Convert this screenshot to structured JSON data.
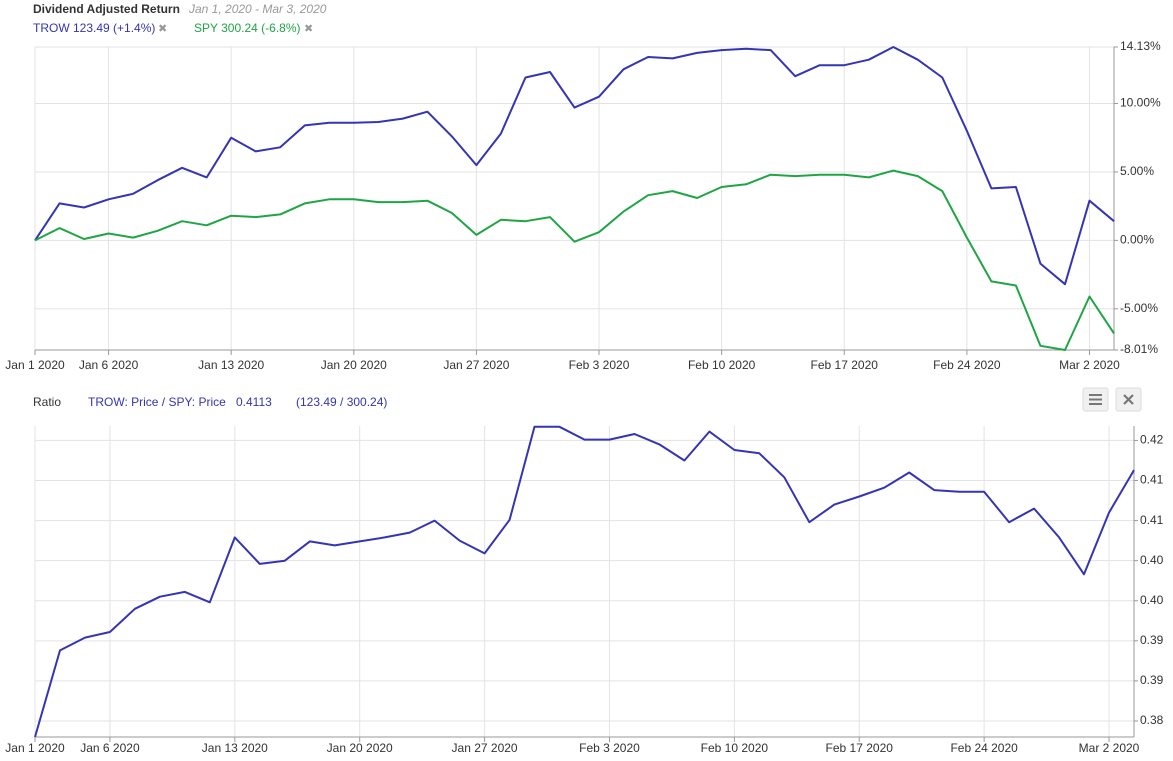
{
  "chart_data": [
    {
      "type": "line",
      "title": "Dividend Adjusted Return",
      "subtitle": "Jan 1, 2020 - Mar 3, 2020",
      "x": [
        "2020-01-01",
        "2020-01-02",
        "2020-01-03",
        "2020-01-06",
        "2020-01-07",
        "2020-01-08",
        "2020-01-09",
        "2020-01-10",
        "2020-01-13",
        "2020-01-14",
        "2020-01-15",
        "2020-01-16",
        "2020-01-17",
        "2020-01-20",
        "2020-01-21",
        "2020-01-22",
        "2020-01-23",
        "2020-01-24",
        "2020-01-27",
        "2020-01-28",
        "2020-01-29",
        "2020-01-30",
        "2020-01-31",
        "2020-02-03",
        "2020-02-04",
        "2020-02-05",
        "2020-02-06",
        "2020-02-07",
        "2020-02-10",
        "2020-02-11",
        "2020-02-12",
        "2020-02-13",
        "2020-02-14",
        "2020-02-17",
        "2020-02-18",
        "2020-02-19",
        "2020-02-20",
        "2020-02-21",
        "2020-02-24",
        "2020-02-25",
        "2020-02-26",
        "2020-02-27",
        "2020-02-28",
        "2020-03-02",
        "2020-03-03"
      ],
      "series": [
        {
          "name": "TROW 123.49 (+1.4%)",
          "color": "#3434b4",
          "values": [
            0,
            2.7,
            2.4,
            3.0,
            3.4,
            4.4,
            5.3,
            4.6,
            7.5,
            6.5,
            6.8,
            8.4,
            8.6,
            8.6,
            8.65,
            8.9,
            9.4,
            7.6,
            5.5,
            7.8,
            11.9,
            12.3,
            9.7,
            10.5,
            12.5,
            13.4,
            13.3,
            13.7,
            13.9,
            14.0,
            13.9,
            12.0,
            12.8,
            12.8,
            13.2,
            14.13,
            13.2,
            11.9,
            8.0,
            3.8,
            3.9,
            -1.7,
            -3.2,
            2.9,
            1.4
          ]
        },
        {
          "name": "SPY 300.24 (-6.8%)",
          "color": "#1fa544",
          "values": [
            0,
            0.9,
            0.1,
            0.5,
            0.2,
            0.7,
            1.4,
            1.1,
            1.8,
            1.7,
            1.9,
            2.7,
            3.0,
            3.0,
            2.8,
            2.8,
            2.9,
            2.0,
            0.4,
            1.5,
            1.4,
            1.7,
            -0.1,
            0.6,
            2.1,
            3.3,
            3.6,
            3.1,
            3.9,
            4.1,
            4.8,
            4.7,
            4.8,
            4.8,
            4.6,
            5.1,
            4.7,
            3.6,
            0.2,
            -3.0,
            -3.3,
            -7.7,
            -8.01,
            -4.1,
            -6.8
          ]
        }
      ],
      "xlim": [
        "2020-01-01",
        "2020-03-03"
      ],
      "xticks": [
        {
          "value": "2020-01-01",
          "label": "Jan 1 2020"
        },
        {
          "value": "2020-01-06",
          "label": "Jan 6 2020"
        },
        {
          "value": "2020-01-13",
          "label": "Jan 13 2020"
        },
        {
          "value": "2020-01-20",
          "label": "Jan 20 2020"
        },
        {
          "value": "2020-01-27",
          "label": "Jan 27 2020"
        },
        {
          "value": "2020-02-03",
          "label": "Feb 3 2020"
        },
        {
          "value": "2020-02-10",
          "label": "Feb 10 2020"
        },
        {
          "value": "2020-02-17",
          "label": "Feb 17 2020"
        },
        {
          "value": "2020-02-24",
          "label": "Feb 24 2020"
        },
        {
          "value": "2020-03-02",
          "label": "Mar 2 2020"
        }
      ],
      "ylim": [
        -8.01,
        14.13
      ],
      "yticks": [
        {
          "value": 14.13,
          "label": "14.13%"
        },
        {
          "value": 10,
          "label": "10.00%"
        },
        {
          "value": 5,
          "label": "5.00%"
        },
        {
          "value": 0,
          "label": "0.00%"
        },
        {
          "value": -5,
          "label": "-5.00%"
        },
        {
          "value": -8.01,
          "label": "-8.01%"
        }
      ],
      "grid": true
    },
    {
      "type": "line",
      "title": "Ratio",
      "annotations": [
        "0.4113",
        "(123.49 / 300.24)"
      ],
      "x": [
        "2020-01-01",
        "2020-01-02",
        "2020-01-03",
        "2020-01-06",
        "2020-01-07",
        "2020-01-08",
        "2020-01-09",
        "2020-01-10",
        "2020-01-13",
        "2020-01-14",
        "2020-01-15",
        "2020-01-16",
        "2020-01-17",
        "2020-01-20",
        "2020-01-21",
        "2020-01-22",
        "2020-01-23",
        "2020-01-24",
        "2020-01-27",
        "2020-01-28",
        "2020-01-29",
        "2020-01-30",
        "2020-01-31",
        "2020-02-03",
        "2020-02-04",
        "2020-02-05",
        "2020-02-06",
        "2020-02-07",
        "2020-02-10",
        "2020-02-11",
        "2020-02-12",
        "2020-02-13",
        "2020-02-14",
        "2020-02-17",
        "2020-02-18",
        "2020-02-19",
        "2020-02-20",
        "2020-02-21",
        "2020-02-24",
        "2020-02-25",
        "2020-02-26",
        "2020-02-27",
        "2020-02-28",
        "2020-03-02",
        "2020-03-03"
      ],
      "series": [
        {
          "name": "TROW: Price / SPY: Price",
          "color": "#3434b4",
          "values": [
            0.378,
            0.3888,
            0.3904,
            0.3911,
            0.394,
            0.3955,
            0.3961,
            0.3948,
            0.4029,
            0.3996,
            0.4,
            0.4024,
            0.4019,
            0.4024,
            0.4029,
            0.4035,
            0.405,
            0.4025,
            0.4009,
            0.4051,
            0.4167,
            0.4167,
            0.4151,
            0.4151,
            0.4158,
            0.4145,
            0.4125,
            0.4161,
            0.4138,
            0.4134,
            0.4104,
            0.4048,
            0.407,
            0.408,
            0.4091,
            0.411,
            0.4088,
            0.4086,
            0.4086,
            0.4048,
            0.4065,
            0.4029,
            0.3983,
            0.406,
            0.4113
          ]
        }
      ],
      "xlim": [
        "2020-01-01",
        "2020-03-03"
      ],
      "xticks": [
        {
          "value": "2020-01-01",
          "label": "Jan 1 2020"
        },
        {
          "value": "2020-01-06",
          "label": "Jan 6 2020"
        },
        {
          "value": "2020-01-13",
          "label": "Jan 13 2020"
        },
        {
          "value": "2020-01-20",
          "label": "Jan 20 2020"
        },
        {
          "value": "2020-01-27",
          "label": "Jan 27 2020"
        },
        {
          "value": "2020-02-03",
          "label": "Feb 3 2020"
        },
        {
          "value": "2020-02-10",
          "label": "Feb 10 2020"
        },
        {
          "value": "2020-02-17",
          "label": "Feb 17 2020"
        },
        {
          "value": "2020-02-24",
          "label": "Feb 24 2020"
        },
        {
          "value": "2020-03-02",
          "label": "Mar 2 2020"
        }
      ],
      "ylim": [
        0.378,
        0.4168
      ],
      "yticks": [
        {
          "value": 0.415,
          "label": "0.42"
        },
        {
          "value": 0.41,
          "label": "0.41"
        },
        {
          "value": 0.405,
          "label": "0.41"
        },
        {
          "value": 0.4,
          "label": "0.40"
        },
        {
          "value": 0.395,
          "label": "0.40"
        },
        {
          "value": 0.39,
          "label": "0.39"
        },
        {
          "value": 0.385,
          "label": "0.39"
        },
        {
          "value": 0.38,
          "label": "0.38"
        }
      ],
      "grid": true
    }
  ]
}
